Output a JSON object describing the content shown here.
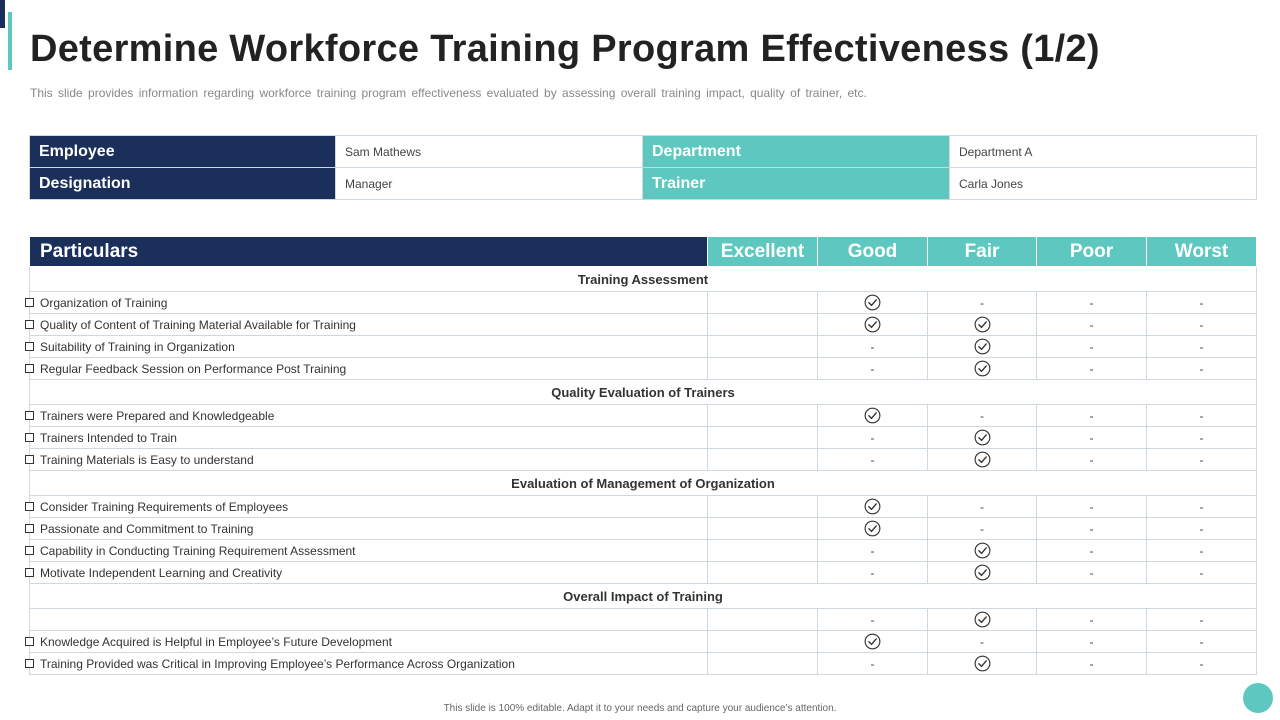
{
  "title": "Determine Workforce Training Program Effectiveness (1/2)",
  "subtitle": "This slide provides information regarding workforce training program effectiveness evaluated by assessing overall training impact, quality of trainer, etc.",
  "info": {
    "employee_label": "Employee",
    "employee_value": "Sam Mathews",
    "department_label": "Department",
    "department_value": "Department  A",
    "designation_label": "Designation",
    "designation_value": "Manager",
    "trainer_label": "Trainer",
    "trainer_value": "Carla Jones"
  },
  "table": {
    "headers": [
      "Particulars",
      "Excellent",
      "Good",
      "Fair",
      "Poor",
      "Worst"
    ],
    "rows": [
      {
        "type": "section",
        "label": "Training Assessment"
      },
      {
        "type": "item",
        "label": "Organization of Training",
        "bullet": true,
        "marks": [
          "",
          "check",
          "-",
          "-",
          "-"
        ]
      },
      {
        "type": "item",
        "label": "Quality of Content of Training Material Available for Training",
        "bullet": true,
        "marks": [
          "",
          "check",
          "check",
          "-",
          "-"
        ]
      },
      {
        "type": "item",
        "label": "Suitability of Training in Organization",
        "bullet": true,
        "marks": [
          "",
          "-",
          "check",
          "-",
          "-"
        ]
      },
      {
        "type": "item",
        "label": "Regular Feedback Session on Performance Post Training",
        "bullet": true,
        "marks": [
          "",
          "-",
          "check",
          "-",
          "-"
        ]
      },
      {
        "type": "section",
        "label": "Quality Evaluation of Trainers"
      },
      {
        "type": "item",
        "label": "Trainers were Prepared and Knowledgeable",
        "bullet": true,
        "marks": [
          "",
          "check",
          "-",
          "-",
          "-"
        ]
      },
      {
        "type": "item",
        "label": "Trainers Intended to Train",
        "bullet": true,
        "marks": [
          "",
          "-",
          "check",
          "-",
          "-"
        ]
      },
      {
        "type": "item",
        "label": "Training Materials is Easy to understand",
        "bullet": true,
        "marks": [
          "",
          "-",
          "check",
          "-",
          "-"
        ]
      },
      {
        "type": "section",
        "label": "Evaluation of Management of Organization"
      },
      {
        "type": "item",
        "label": "Consider Training Requirements of Employees",
        "bullet": true,
        "marks": [
          "",
          "check",
          "-",
          "-",
          "-"
        ]
      },
      {
        "type": "item",
        "label": "Passionate and Commitment to Training",
        "bullet": true,
        "marks": [
          "",
          "check",
          "-",
          "-",
          "-"
        ]
      },
      {
        "type": "item",
        "label": "Capability in Conducting Training Requirement Assessment",
        "bullet": true,
        "marks": [
          "",
          "-",
          "check",
          "-",
          "-"
        ]
      },
      {
        "type": "item",
        "label": "Motivate  Independent Learning and Creativity",
        "bullet": true,
        "marks": [
          "",
          "-",
          "check",
          "-",
          "-"
        ]
      },
      {
        "type": "section",
        "label": "Overall Impact of Training"
      },
      {
        "type": "item",
        "label": "",
        "bullet": false,
        "marks": [
          "",
          "-",
          "check",
          "-",
          "-"
        ]
      },
      {
        "type": "item",
        "label": "Knowledge Acquired is Helpful in Employee’s Future Development",
        "bullet": true,
        "marks": [
          "",
          "check",
          "-",
          "-",
          "-"
        ]
      },
      {
        "type": "item",
        "label": "Training Provided was Critical in Improving Employee’s Performance Across Organization",
        "bullet": true,
        "marks": [
          "",
          "-",
          "check",
          "-",
          "-"
        ]
      }
    ]
  },
  "footer": "This slide is 100% editable. Adapt it to your needs and capture your audience’s attention.",
  "colors": {
    "navy": "#1b2f5b",
    "teal": "#5ec8c0"
  }
}
